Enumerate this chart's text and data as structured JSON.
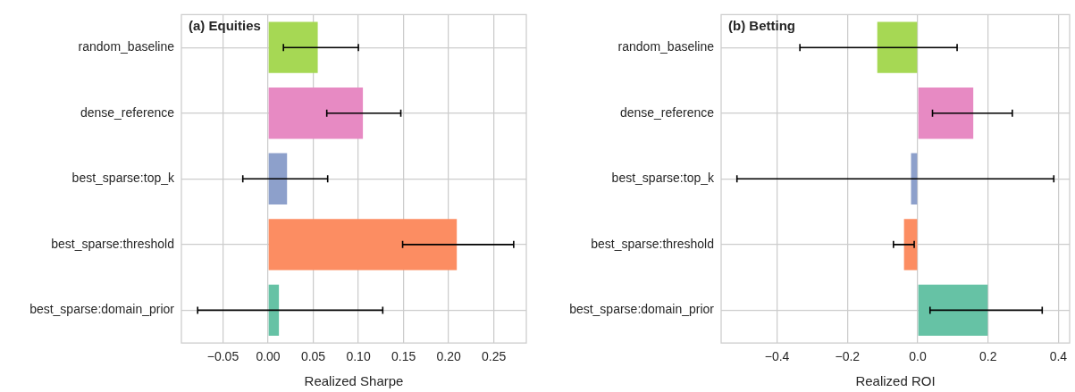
{
  "chart_data": [
    {
      "type": "bar",
      "orientation": "horizontal",
      "title": "(a) Equities",
      "xlabel": "Realized Sharpe",
      "categories": [
        "random_baseline",
        "dense_reference",
        "best_sparse:top_k",
        "best_sparse:threshold",
        "best_sparse:domain_prior"
      ],
      "values": [
        0.055,
        0.105,
        0.021,
        0.209,
        0.012
      ],
      "errors": [
        [
          0.017,
          0.1
        ],
        [
          0.065,
          0.147
        ],
        [
          -0.028,
          0.066
        ],
        [
          0.149,
          0.272
        ],
        [
          -0.078,
          0.127
        ]
      ],
      "colors": [
        "#a6d854",
        "#e78ac3",
        "#8da0cb",
        "#fc8d62",
        "#66c2a5"
      ],
      "xlim": [
        -0.096,
        0.286
      ],
      "xticks": [
        {
          "value": -0.05,
          "label": "−0.05"
        },
        {
          "value": 0,
          "label": "0.00"
        },
        0.05,
        {
          "value": 0.1,
          "label": "0.10"
        },
        0.15,
        {
          "value": 0.2,
          "label": "0.20"
        },
        0.25
      ],
      "grid": true,
      "legend": false
    },
    {
      "type": "bar",
      "orientation": "horizontal",
      "title": "(b) Betting",
      "xlabel": "Realized ROI",
      "categories": [
        "random_baseline",
        "dense_reference",
        "best_sparse:top_k",
        "best_sparse:threshold",
        "best_sparse:domain_prior"
      ],
      "values": [
        -0.115,
        0.158,
        -0.019,
        -0.039,
        0.199
      ],
      "errors": [
        [
          -0.335,
          0.112
        ],
        [
          0.042,
          0.269
        ],
        [
          -0.514,
          0.387
        ],
        [
          -0.069,
          -0.01
        ],
        [
          0.035,
          0.354
        ]
      ],
      "colors": [
        "#a6d854",
        "#e78ac3",
        "#8da0cb",
        "#fc8d62",
        "#66c2a5"
      ],
      "xlim": [
        -0.559,
        0.432
      ],
      "xticks": [
        {
          "value": -0.4,
          "label": "−0.4"
        },
        {
          "value": -0.2,
          "label": "−0.2"
        },
        {
          "value": 0,
          "label": "0.0"
        },
        0.2,
        0.4
      ],
      "grid": true,
      "legend": false
    }
  ]
}
